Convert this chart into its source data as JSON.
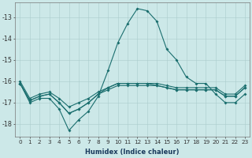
{
  "xlabel": "Humidex (Indice chaleur)",
  "background_color": "#cce8e8",
  "grid_color": "#aacccc",
  "line_color": "#1a6e6e",
  "x_values": [
    0,
    1,
    2,
    3,
    4,
    5,
    6,
    7,
    8,
    9,
    10,
    11,
    12,
    13,
    14,
    15,
    16,
    17,
    18,
    19,
    20,
    21,
    22,
    23
  ],
  "line1": [
    -16.1,
    -17.0,
    -16.8,
    -16.8,
    -17.3,
    -18.3,
    -17.8,
    -17.4,
    -16.7,
    -15.5,
    -14.2,
    -13.3,
    -12.6,
    -12.7,
    -13.2,
    -14.5,
    -15.0,
    -15.8,
    -16.1,
    -16.1,
    -16.6,
    -17.0,
    -17.0,
    -16.6
  ],
  "line2": [
    -16.1,
    -16.9,
    -16.7,
    -16.6,
    -17.0,
    -17.5,
    -17.3,
    -17.0,
    -16.6,
    -16.3,
    -16.1,
    -16.1,
    -16.1,
    -16.1,
    -16.2,
    -16.3,
    -16.4,
    -16.4,
    -16.4,
    -16.4,
    -16.4,
    -16.7,
    -16.7,
    -16.3
  ],
  "line3": [
    -16.1,
    -16.9,
    -16.7,
    -16.6,
    -17.0,
    -17.5,
    -17.3,
    -17.0,
    -16.6,
    -16.4,
    -16.2,
    -16.2,
    -16.2,
    -16.2,
    -16.2,
    -16.3,
    -16.4,
    -16.4,
    -16.4,
    -16.4,
    -16.4,
    -16.7,
    -16.7,
    -16.3
  ],
  "line4": [
    -16.0,
    -16.8,
    -16.6,
    -16.5,
    -16.8,
    -17.2,
    -17.0,
    -16.8,
    -16.5,
    -16.3,
    -16.1,
    -16.1,
    -16.1,
    -16.1,
    -16.1,
    -16.2,
    -16.3,
    -16.3,
    -16.3,
    -16.3,
    -16.3,
    -16.6,
    -16.6,
    -16.2
  ],
  "ylim": [
    -18.6,
    -12.3
  ],
  "xlim": [
    -0.5,
    23.5
  ],
  "yticks": [
    -18,
    -17,
    -16,
    -15,
    -14,
    -13
  ],
  "xticks": [
    0,
    1,
    2,
    3,
    4,
    5,
    6,
    7,
    8,
    9,
    10,
    11,
    12,
    13,
    14,
    15,
    16,
    17,
    18,
    19,
    20,
    21,
    22,
    23
  ],
  "xlabel_fontsize": 6.0,
  "tick_fontsize": 5.2,
  "ytick_fontsize": 5.8,
  "lw": 0.8,
  "ms": 2.0
}
